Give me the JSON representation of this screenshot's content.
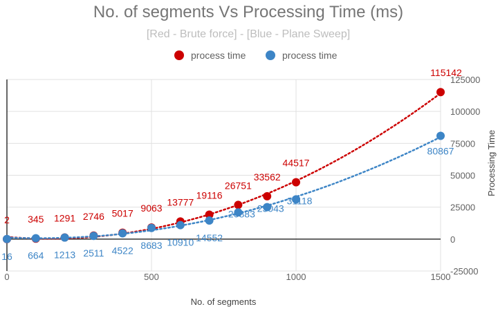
{
  "chart_data": {
    "type": "scatter",
    "title": "No. of segments Vs Processing Time (ms)",
    "subtitle": "[Red - Brute force] - [Blue - Plane Sweep]",
    "xlabel": "No. of segments",
    "ylabel": "Processing Time",
    "xlim": [
      0,
      1500
    ],
    "ylim": [
      -25000,
      125000
    ],
    "x_ticks": [
      0,
      500,
      1000,
      1500
    ],
    "y_ticks": [
      -25000,
      0,
      25000,
      50000,
      75000,
      100000,
      125000
    ],
    "x_tick_labels": [
      "0",
      "500",
      "1000",
      "1500"
    ],
    "y_tick_labels": [
      "-25000",
      "0",
      "25000",
      "50000",
      "75000",
      "100000",
      "125000"
    ],
    "series": [
      {
        "name": "process time",
        "color": "#cc0000",
        "x": [
          0,
          100,
          200,
          300,
          400,
          500,
          600,
          700,
          800,
          900,
          1000,
          1500
        ],
        "values": [
          2,
          345,
          1291,
          2746,
          5017,
          9063,
          13777,
          19116,
          26751,
          33562,
          44517,
          115142
        ],
        "labels": [
          "2",
          "345",
          "1291",
          "2746",
          "5017",
          "9063",
          "13777",
          "19116",
          "26751",
          "33562",
          "44517",
          "115142"
        ],
        "trendline": "polynomial-dotted"
      },
      {
        "name": "process time",
        "color": "#3d85c6",
        "x": [
          0,
          100,
          200,
          300,
          400,
          500,
          600,
          700,
          800,
          900,
          1000,
          1500
        ],
        "values": [
          16,
          664,
          1213,
          2511,
          4522,
          8683,
          10910,
          14552,
          20883,
          25043,
          31118,
          80867
        ],
        "labels": [
          "16",
          "664",
          "1213",
          "2511",
          "4522",
          "8683",
          "10910",
          "14552",
          "20883",
          "25043",
          "31118",
          "80867"
        ],
        "trendline": "polynomial-dotted"
      }
    ]
  }
}
